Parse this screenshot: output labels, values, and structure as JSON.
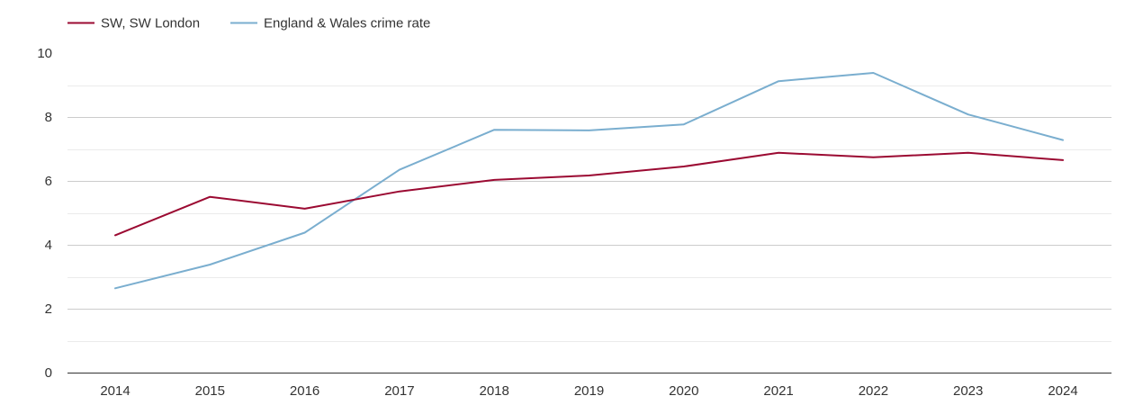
{
  "chart_data": {
    "type": "line",
    "title": "",
    "xlabel": "",
    "ylabel": "",
    "categories": [
      "2014",
      "2015",
      "2016",
      "2017",
      "2018",
      "2019",
      "2020",
      "2021",
      "2022",
      "2023",
      "2024"
    ],
    "ylim": [
      0,
      10
    ],
    "y_ticks": [
      "0",
      "2",
      "4",
      "6",
      "8",
      "10"
    ],
    "grid": true,
    "legend_position": "top-left",
    "series": [
      {
        "name": "SW, SW London",
        "color": "#9b0a32",
        "values": [
          4.3,
          5.5,
          5.13,
          5.67,
          6.03,
          6.17,
          6.45,
          6.88,
          6.74,
          6.88,
          6.65
        ]
      },
      {
        "name": "England & Wales crime rate",
        "color": "#7aaecf",
        "values": [
          2.64,
          3.38,
          4.38,
          6.35,
          7.6,
          7.58,
          7.77,
          9.12,
          9.38,
          8.08,
          7.28
        ]
      }
    ]
  }
}
